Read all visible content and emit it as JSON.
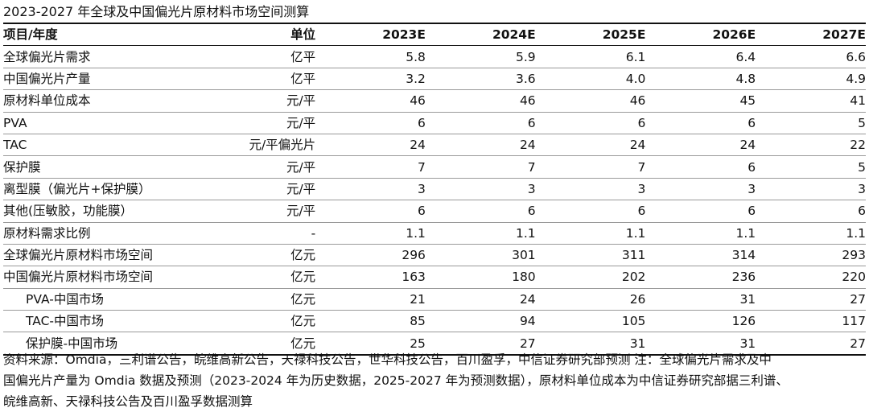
{
  "title": "2023-2027 年全球及中国偏光片原材料市场空间测算",
  "table": {
    "headers": [
      "项目/年度",
      "单位",
      "2023E",
      "2024E",
      "2025E",
      "2026E",
      "2027E"
    ],
    "rows": [
      {
        "item": "全球偏光片需求",
        "unit": "亿平",
        "values": [
          "5.8",
          "5.9",
          "6.1",
          "6.4",
          "6.6"
        ],
        "indent": false
      },
      {
        "item": "中国偏光片产量",
        "unit": "亿平",
        "values": [
          "3.2",
          "3.6",
          "4.0",
          "4.8",
          "4.9"
        ],
        "indent": false
      },
      {
        "item": "原材料单位成本",
        "unit": "元/平",
        "values": [
          "46",
          "46",
          "46",
          "45",
          "41"
        ],
        "indent": false
      },
      {
        "item": "PVA",
        "unit": "元/平",
        "values": [
          "6",
          "6",
          "6",
          "6",
          "5"
        ],
        "indent": false
      },
      {
        "item": "TAC",
        "unit": "元/平偏光片",
        "values": [
          "24",
          "24",
          "24",
          "24",
          "22"
        ],
        "indent": false
      },
      {
        "item": "保护膜",
        "unit": "元/平",
        "values": [
          "7",
          "7",
          "7",
          "6",
          "5"
        ],
        "indent": false
      },
      {
        "item": "离型膜（偏光片+保护膜）",
        "unit": "元/平",
        "values": [
          "3",
          "3",
          "3",
          "3",
          "3"
        ],
        "indent": false
      },
      {
        "item": "其他(压敏胶，功能膜）",
        "unit": "元/平",
        "values": [
          "6",
          "6",
          "6",
          "6",
          "6"
        ],
        "indent": false
      },
      {
        "item": "原材料需求比例",
        "unit": "-",
        "values": [
          "1.1",
          "1.1",
          "1.1",
          "1.1",
          "1.1"
        ],
        "indent": false
      },
      {
        "item": "全球偏光片原材料市场空间",
        "unit": "亿元",
        "values": [
          "296",
          "301",
          "311",
          "314",
          "293"
        ],
        "indent": false
      },
      {
        "item": "中国偏光片原材料市场空间",
        "unit": "亿元",
        "values": [
          "163",
          "180",
          "202",
          "236",
          "220"
        ],
        "indent": false
      },
      {
        "item": "PVA-中国市场",
        "unit": "亿元",
        "values": [
          "21",
          "24",
          "26",
          "31",
          "27"
        ],
        "indent": true
      },
      {
        "item": "TAC-中国市场",
        "unit": "亿元",
        "values": [
          "85",
          "94",
          "105",
          "126",
          "117"
        ],
        "indent": true
      },
      {
        "item": "保护膜-中国市场",
        "unit": "亿元",
        "values": [
          "25",
          "27",
          "31",
          "31",
          "27"
        ],
        "indent": true
      }
    ]
  },
  "footnote": {
    "lines": [
      "资料来源：Omdia，三利谱公告，皖维高新公告，天禄科技公告，世华科技公告，百川盈孚，中信证券研究部预测 注：全球偏光片需求及中",
      "国偏光片产量为 Omdia 数据及预测（2023-2024 年为历史数据，2025-2027 年为预测数据），原材料单位成本为中信证券研究部据三利谱、",
      "皖维高新、天禄科技公告及百川盈孚数据测算"
    ]
  }
}
